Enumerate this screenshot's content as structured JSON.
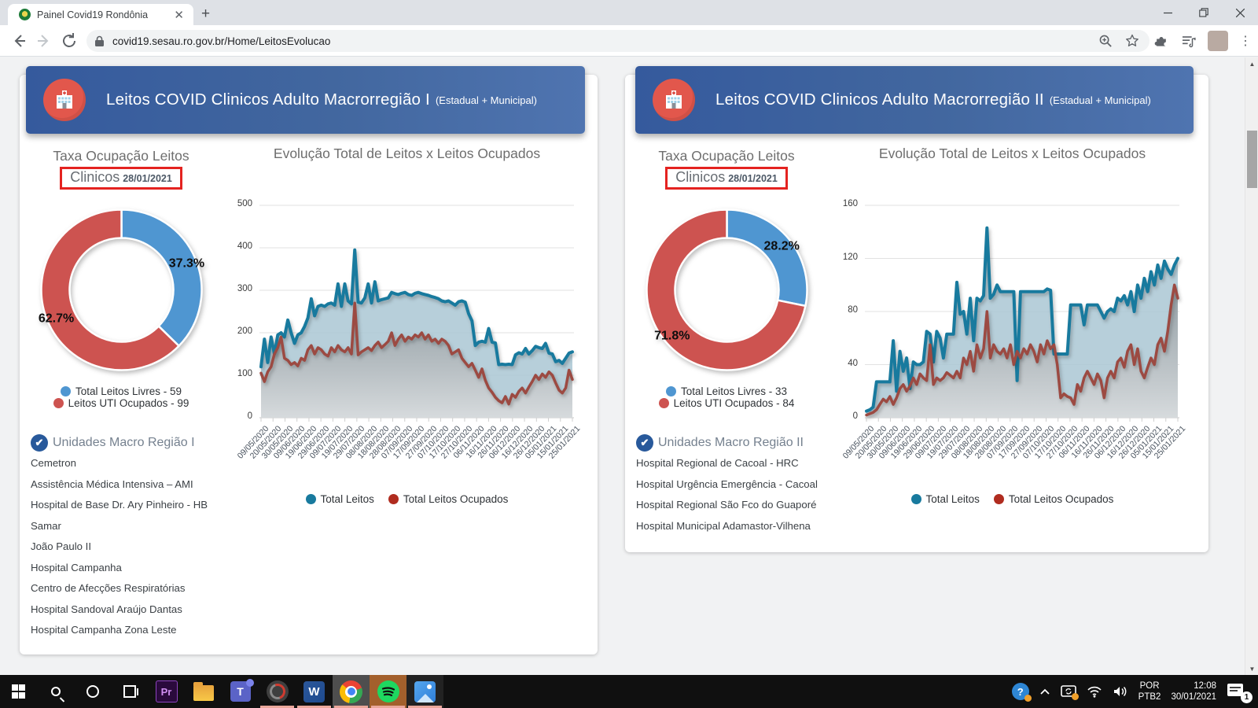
{
  "browser": {
    "tab_title": "Painel Covid19 Rondônia",
    "url": "covid19.sesau.ro.gov.br/Home/LeitosEvolucao"
  },
  "panels": [
    {
      "header_title": "Leitos COVID Clinicos Adulto Macrorregião I",
      "header_subtitle": "(Estadual + Municipal)",
      "pie_title": "Taxa Ocupação Leitos",
      "pie_subtitle": "Clinicos",
      "pie_date": "28/01/2021",
      "units": {
        "title": "Unidades Macro Região I",
        "items": [
          "Cemetron",
          "Assistência Médica Intensiva – AMI",
          "Hospital de Base Dr. Ary Pinheiro - HB",
          "Samar",
          "João Paulo II",
          "Hospital Campanha",
          "Centro de Afecções Respiratórias",
          "Hospital Sandoval Araújo Dantas",
          "Hospital Campanha Zona Leste"
        ]
      }
    },
    {
      "header_title": "Leitos COVID Clinicos Adulto Macrorregião II",
      "header_subtitle": "(Estadual + Municipal)",
      "pie_title": "Taxa Ocupação Leitos",
      "pie_subtitle": "Clinicos",
      "pie_date": "28/01/2021",
      "units": {
        "title": "Unidades Macro Região II",
        "items": [
          "Hospital Regional de Cacoal - HRC",
          "Hospital Urgência Emergência - Cacoal",
          "Hospital Regional São Fco do Guaporé",
          "Hospital Municipal Adamastor-Vilhena"
        ]
      }
    }
  ],
  "chart_data": [
    {
      "type": "pie",
      "subtype": "donut",
      "title": "Taxa Ocupação Leitos Clinicos 28/01/2021",
      "labels": [
        "Total Leitos Livres - 59",
        "Leitos UTI Ocupados - 99"
      ],
      "values": [
        37.3,
        62.7
      ],
      "value_labels": [
        "37.3%",
        "62.7%"
      ],
      "counts": [
        59,
        99
      ],
      "colors": [
        "#4f96d1",
        "#cd5350"
      ],
      "legend_position": "bottom"
    },
    {
      "type": "line",
      "title": "Evolução Total de Leitos x Leitos Ocupados",
      "ylim": [
        0,
        500
      ],
      "yticks": [
        0,
        100,
        200,
        300,
        400,
        500
      ],
      "grid": true,
      "legend_position": "bottom",
      "x_tick_labels": [
        "09/05/2020",
        "20/05/2020",
        "30/05/2020",
        "09/06/2020",
        "19/06/2020",
        "29/06/2020",
        "09/07/2020",
        "19/07/2020",
        "29/07/2020",
        "08/08/2020",
        "18/08/2020",
        "28/08/2020",
        "07/09/2020",
        "17/09/2020",
        "27/09/2020",
        "07/10/2020",
        "17/10/2020",
        "27/10/2020",
        "06/11/2020",
        "16/11/2020",
        "26/11/2020",
        "06/12/2020",
        "16/12/2020",
        "26/12/2020",
        "05/01/2021",
        "15/01/2021",
        "25/01/2021"
      ],
      "series": [
        {
          "name": "Total Leitos",
          "color": "#187a9e",
          "area_color": "rgba(170,199,212,0.85)",
          "legend_color": "#187a9e",
          "values": [
            120,
            185,
            130,
            190,
            150,
            195,
            200,
            190,
            230,
            200,
            175,
            195,
            200,
            215,
            235,
            280,
            240,
            262,
            265,
            262,
            268,
            270,
            265,
            315,
            262,
            315,
            275,
            268,
            395,
            272,
            270,
            282,
            315,
            270,
            320,
            275,
            278,
            280,
            282,
            295,
            292,
            290,
            293,
            295,
            290,
            288,
            293,
            295,
            292,
            290,
            288,
            285,
            283,
            280,
            275,
            273,
            275,
            270,
            265,
            273,
            275,
            272,
            245,
            228,
            170,
            178,
            180,
            178,
            210,
            178,
            176,
            125,
            126,
            125,
            126,
            125,
            148,
            153,
            150,
            163,
            150,
            158,
            168,
            165,
            163,
            175,
            152,
            150,
            132,
            135,
            128,
            140,
            152,
            155
          ]
        },
        {
          "name": "Total Leitos Ocupados",
          "color": "#9c4a42",
          "area_color": "url(#grayGrad)",
          "legend_color": "#b02c1f",
          "values": [
            105,
            85,
            108,
            120,
            150,
            165,
            190,
            140,
            135,
            125,
            130,
            122,
            140,
            135,
            160,
            170,
            150,
            165,
            160,
            150,
            145,
            165,
            155,
            170,
            160,
            155,
            165,
            150,
            270,
            148,
            155,
            160,
            165,
            158,
            170,
            178,
            165,
            172,
            180,
            200,
            170,
            185,
            195,
            180,
            190,
            185,
            195,
            190,
            200,
            185,
            195,
            180,
            185,
            175,
            185,
            180,
            170,
            150,
            155,
            160,
            140,
            130,
            120,
            128,
            112,
            95,
            115,
            88,
            70,
            60,
            48,
            40,
            35,
            50,
            32,
            55,
            48,
            62,
            70,
            58,
            72,
            85,
            100,
            90,
            103,
            95,
            108,
            100,
            82,
            65,
            58,
            70,
            112,
            90
          ]
        }
      ]
    },
    {
      "type": "pie",
      "subtype": "donut",
      "title": "Taxa Ocupação Leitos Clinicos 28/01/2021",
      "labels": [
        "Total Leitos Livres - 33",
        "Leitos UTI Ocupados - 84"
      ],
      "values": [
        28.2,
        71.8
      ],
      "value_labels": [
        "28.2%",
        "71.8%"
      ],
      "counts": [
        33,
        84
      ],
      "colors": [
        "#4f96d1",
        "#cd5350"
      ],
      "legend_position": "bottom"
    },
    {
      "type": "line",
      "title": "Evolução Total de Leitos x Leitos Ocupados",
      "ylim": [
        0,
        160
      ],
      "yticks": [
        0,
        40,
        80,
        120,
        160
      ],
      "grid": true,
      "legend_position": "bottom",
      "x_tick_labels": [
        "09/05/2020",
        "20/05/2020",
        "30/05/2020",
        "09/06/2020",
        "19/06/2020",
        "29/06/2020",
        "09/07/2020",
        "19/07/2020",
        "29/07/2020",
        "08/08/2020",
        "18/08/2020",
        "28/08/2020",
        "07/09/2020",
        "17/09/2020",
        "27/09/2020",
        "07/10/2020",
        "17/10/2020",
        "27/10/2020",
        "06/11/2020",
        "16/11/2020",
        "26/11/2020",
        "06/12/2020",
        "16/12/2020",
        "26/12/2020",
        "05/01/2021",
        "15/01/2021",
        "25/01/2021"
      ],
      "series": [
        {
          "name": "Total Leitos",
          "color": "#187a9e",
          "area_color": "rgba(170,199,212,0.85)",
          "legend_color": "#187a9e",
          "values": [
            5,
            6,
            8,
            27,
            27,
            27,
            27,
            27,
            58,
            20,
            50,
            35,
            45,
            22,
            42,
            40,
            40,
            42,
            65,
            63,
            42,
            65,
            60,
            45,
            63,
            63,
            63,
            102,
            78,
            80,
            63,
            90,
            58,
            90,
            88,
            92,
            143,
            90,
            93,
            100,
            95,
            95,
            95,
            95,
            95,
            28,
            95,
            95,
            95,
            95,
            95,
            95,
            95,
            95,
            97,
            96,
            48,
            48,
            48,
            48,
            48,
            85,
            85,
            85,
            85,
            70,
            85,
            85,
            85,
            85,
            80,
            75,
            80,
            82,
            80,
            90,
            88,
            92,
            85,
            95,
            80,
            100,
            90,
            105,
            95,
            110,
            100,
            115,
            105,
            118,
            112,
            108,
            115,
            120
          ]
        },
        {
          "name": "Total Leitos Ocupados",
          "color": "#9c4a42",
          "area_color": "url(#grayGrad)",
          "legend_color": "#b02c1f",
          "values": [
            2,
            3,
            4,
            6,
            10,
            14,
            12,
            16,
            10,
            15,
            22,
            25,
            20,
            24,
            30,
            25,
            33,
            30,
            28,
            55,
            25,
            30,
            28,
            30,
            34,
            32,
            30,
            35,
            30,
            45,
            40,
            50,
            35,
            55,
            45,
            52,
            80,
            45,
            55,
            50,
            48,
            52,
            45,
            55,
            40,
            50,
            45,
            52,
            48,
            55,
            50,
            42,
            55,
            48,
            58,
            52,
            55,
            40,
            15,
            18,
            16,
            15,
            10,
            25,
            20,
            30,
            35,
            30,
            25,
            33,
            28,
            15,
            30,
            35,
            30,
            42,
            45,
            38,
            50,
            55,
            40,
            52,
            35,
            30,
            38,
            45,
            40,
            55,
            60,
            50,
            65,
            85,
            100,
            90
          ]
        }
      ]
    }
  ],
  "taskbar": {
    "lang_line1": "POR",
    "lang_line2": "PTB2",
    "time": "12:08",
    "date": "30/01/2021",
    "notification_count": "1",
    "icon_glyphs": {
      "premiere": "Pr",
      "word": "W",
      "teams": "T",
      "help": "?"
    }
  }
}
